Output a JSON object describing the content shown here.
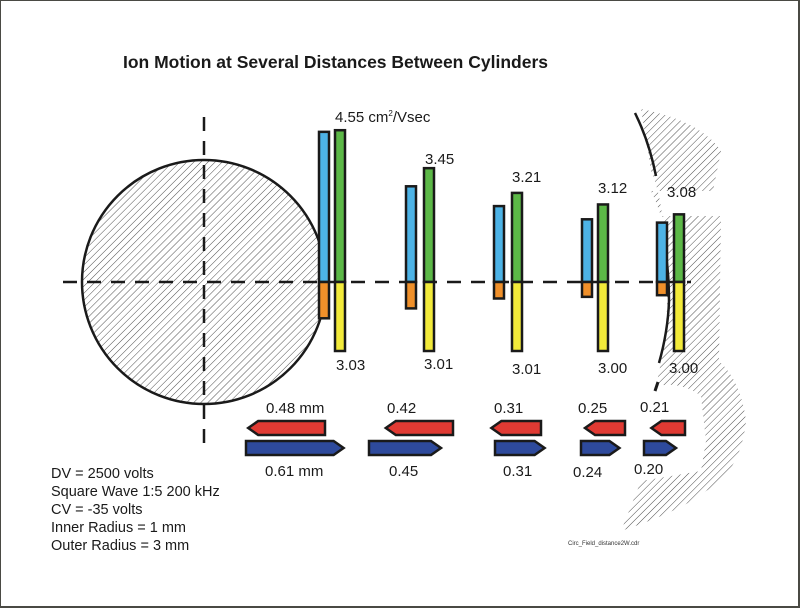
{
  "title": "Ion Motion at Several Distances Between Cylinders",
  "mobility_unit_suffix": " cm",
  "mobility_unit_sup": "2",
  "mobility_unit_tail": "/Vsec",
  "groups": [
    {
      "top_mobility": "4.55",
      "bottom_mobility": "3.03",
      "left_motion": "0.48 mm",
      "right_motion": "0.61 mm",
      "values": {
        "blue": 4.55,
        "green": 4.6,
        "orange": 1.1,
        "yellow": 2.0
      }
    },
    {
      "top_mobility": "3.45",
      "bottom_mobility": "3.01",
      "left_motion": "0.42",
      "right_motion": "0.45",
      "values": {
        "blue": 2.9,
        "green": 3.45,
        "orange": 0.8,
        "yellow": 2.0
      }
    },
    {
      "top_mobility": "3.21",
      "bottom_mobility": "3.01",
      "left_motion": "0.31",
      "right_motion": "0.31",
      "values": {
        "blue": 2.3,
        "green": 2.7,
        "orange": 0.5,
        "yellow": 2.0
      }
    },
    {
      "top_mobility": "3.12",
      "bottom_mobility": "3.00",
      "left_motion": "0.25",
      "right_motion": "0.24",
      "values": {
        "blue": 1.9,
        "green": 2.35,
        "orange": 0.45,
        "yellow": 2.0
      }
    },
    {
      "top_mobility": "3.08",
      "bottom_mobility": "3.00",
      "left_motion": "0.21",
      "right_motion": "0.20",
      "values": {
        "blue": 1.8,
        "green": 2.05,
        "orange": 0.4,
        "yellow": 2.0
      }
    }
  ],
  "parameters": [
    "DV = 2500 volts",
    "Square Wave 1:5 200 kHz",
    "CV = -35 volts",
    "Inner Radius = 1 mm",
    "Outer Radius = 3 mm"
  ],
  "filename": "Circ_Field_distance2W.cdr",
  "colors": {
    "blue_bar": "#4db3e6",
    "green_bar": "#5cb847",
    "orange_bar": "#f0902a",
    "yellow_bar": "#f2ea3a",
    "red_arrow": "#e03a33",
    "blue_arrow": "#2e4a9c",
    "outline": "#1a1a1a"
  }
}
